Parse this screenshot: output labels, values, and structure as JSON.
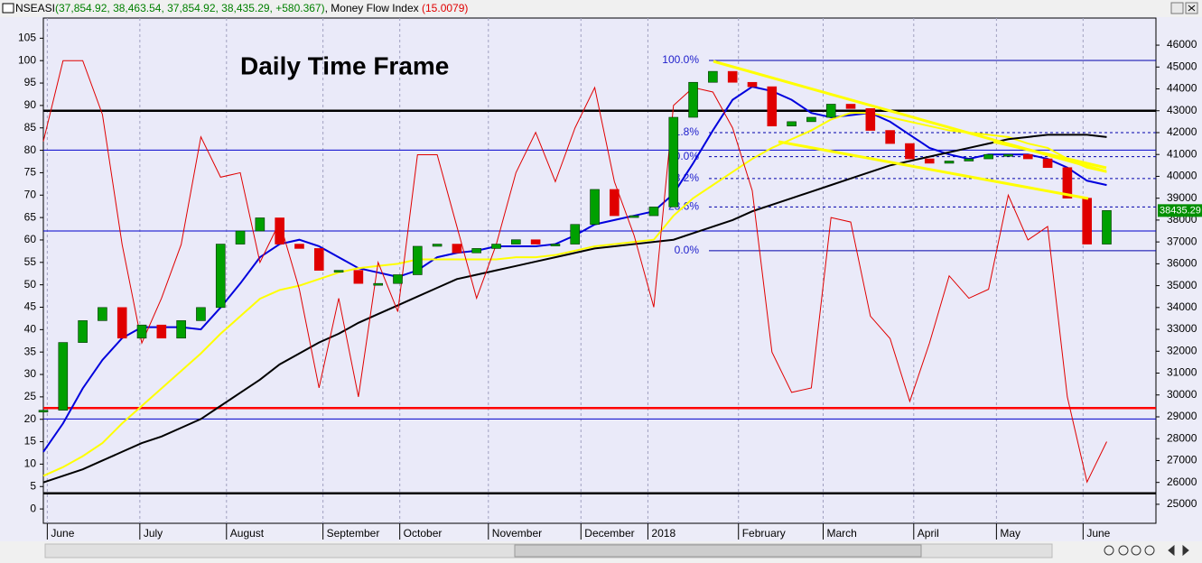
{
  "chart_data": {
    "type": "candlestick",
    "header_values": [
      "(37,854.92, 38,463.54, 37,854.92, 38,435.29, +580.367)",
      "(15.0079)"
    ],
    "annotation": "Daily Time Frame",
    "xlim": [
      0,
      56.5
    ],
    "xticks": [
      {
        "value": 0.2,
        "label": "June"
      },
      {
        "value": 4.9,
        "label": "July"
      },
      {
        "value": 9.3,
        "label": "August"
      },
      {
        "value": 14.2,
        "label": "September"
      },
      {
        "value": 18.1,
        "label": "October"
      },
      {
        "value": 22.6,
        "label": "November"
      },
      {
        "value": 27.3,
        "label": "December"
      },
      {
        "value": 30.7,
        "label": "2018"
      },
      {
        "value": 35.3,
        "label": "February"
      },
      {
        "value": 39.6,
        "label": "March"
      },
      {
        "value": 44.2,
        "label": "April"
      },
      {
        "value": 48.4,
        "label": "May"
      },
      {
        "value": 52.8,
        "label": "June"
      }
    ],
    "ylim": [
      -3.2,
      109.5
    ],
    "yticks": [
      0,
      5,
      10,
      15,
      20,
      25,
      30,
      35,
      40,
      45,
      50,
      55,
      60,
      65,
      70,
      75,
      80,
      85,
      90,
      95,
      100,
      105
    ],
    "y2lim": [
      24130,
      47240
    ],
    "y2ticks": [
      25000,
      26000,
      27000,
      28000,
      29000,
      30000,
      31000,
      32000,
      33000,
      34000,
      35000,
      36000,
      37000,
      38000,
      39000,
      40000,
      41000,
      42000,
      43000,
      44000,
      45000,
      46000
    ],
    "grid": true,
    "up_color": "#00a000",
    "down_color": "#e00000",
    "series": [
      {
        "name": "NSEASI",
        "axis": "y2",
        "values": [
          29300,
          32400,
          33400,
          34000,
          32600,
          33200,
          32600,
          33400,
          34000,
          36900,
          37500,
          38100,
          36900,
          36700,
          35700,
          35700,
          35100,
          35100,
          35500,
          36800,
          36900,
          36500,
          36700,
          36900,
          37100,
          36900,
          36900,
          37800,
          39400,
          38200,
          38200,
          38600,
          42700,
          44300,
          44800,
          44300,
          44100,
          42300,
          42500,
          42700,
          43300,
          43100,
          42100,
          41500,
          40800,
          40600,
          40700,
          40800,
          41000,
          41000,
          40800,
          40400,
          39000,
          36900,
          38435.29
        ]
      },
      {
        "color": "#0000dd",
        "axis": "y2",
        "values": [
          27400,
          28700,
          30300,
          31600,
          32600,
          33100,
          33100,
          33100,
          33000,
          34000,
          35100,
          36300,
          36900,
          37100,
          36800,
          36300,
          35800,
          35600,
          35400,
          35700,
          36300,
          36500,
          36600,
          36800,
          36800,
          36800,
          36900,
          37300,
          37800,
          38000,
          38200,
          38400,
          39200,
          40600,
          42100,
          43500,
          44100,
          43900,
          43500,
          42900,
          42700,
          42800,
          42900,
          42500,
          41900,
          41300,
          41000,
          40800,
          41000,
          41000,
          41000,
          40800,
          40400,
          39800,
          39600
        ]
      },
      {
        "color": "#ffff00",
        "axis": "y2",
        "values": [
          26300,
          26700,
          27200,
          27800,
          28700,
          29500,
          30300,
          31100,
          31900,
          32800,
          33600,
          34400,
          34800,
          35000,
          35300,
          35600,
          35800,
          35900,
          36000,
          36200,
          36200,
          36200,
          36200,
          36200,
          36300,
          36300,
          36400,
          36600,
          36800,
          36900,
          37000,
          37100,
          38200,
          39000,
          39600,
          40200,
          40800,
          41300,
          41700,
          42100,
          42600,
          42900,
          42900,
          42700,
          42500,
          42300,
          42100,
          42000,
          41900,
          41800,
          41500,
          41300,
          40800,
          40400,
          40200
        ]
      },
      {
        "color": "#000000",
        "axis": "y2",
        "values": [
          26000,
          26300,
          26600,
          27000,
          27400,
          27800,
          28100,
          28500,
          28900,
          29500,
          30100,
          30700,
          31400,
          31900,
          32400,
          32800,
          33300,
          33700,
          34100,
          34500,
          34900,
          35300,
          35500,
          35700,
          35900,
          36100,
          36300,
          36500,
          36700,
          36800,
          36900,
          37000,
          37100,
          37400,
          37700,
          38000,
          38400,
          38700,
          39000,
          39300,
          39600,
          39900,
          40200,
          40500,
          40700,
          40900,
          41100,
          41300,
          41500,
          41700,
          41800,
          41900,
          41900,
          41900,
          41800
        ]
      },
      {
        "name": "Money Flow Index",
        "color": "#e00000",
        "axis": "y",
        "values": [
          82,
          100,
          100,
          88,
          59,
          37,
          47,
          59,
          83,
          74,
          75,
          55,
          64,
          49,
          27,
          47,
          25,
          55,
          44,
          79,
          79,
          63,
          47,
          59,
          75,
          84,
          73,
          85,
          94,
          73,
          61,
          45,
          90,
          94,
          93,
          85,
          71,
          35,
          26,
          27,
          65,
          64,
          43,
          38,
          24,
          37,
          52,
          47,
          49,
          70,
          60,
          63,
          25,
          6,
          15.0079
        ]
      }
    ],
    "levels": [
      {
        "value": 43000,
        "color": "#000000",
        "thick": true
      },
      {
        "value": 41200,
        "color": "#0000cc",
        "thick": false
      },
      {
        "value": 37500,
        "color": "#0000cc",
        "thick": false
      },
      {
        "value": 28900,
        "color": "#0000cc",
        "thick": false
      },
      {
        "value": 29400,
        "color": "#ff0000",
        "thick": true
      },
      {
        "value": 25500,
        "color": "#000000",
        "thick": true
      }
    ],
    "fib": [
      {
        "label": "100.0%",
        "value": 45300,
        "dashed": false
      },
      {
        "label": "61.8%",
        "value": 42000,
        "dashed": true
      },
      {
        "label": "50.0%",
        "value": 40900,
        "dashed": true
      },
      {
        "label": "38.2%",
        "value": 39900,
        "dashed": true
      },
      {
        "label": "23.6%",
        "value": 38600,
        "dashed": true
      },
      {
        "label": "0.0%",
        "value": 36600,
        "dashed": false
      }
    ],
    "last_price": 38435.29
  }
}
